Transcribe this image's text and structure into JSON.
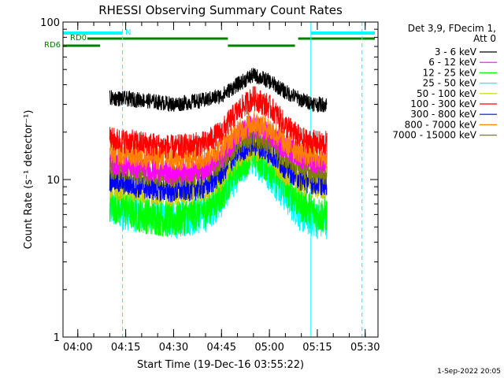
{
  "chart_data": {
    "type": "line",
    "title": "RHESSI Observing Summary Count Rates",
    "xlabel": "Start Time (19-Dec-16 03:55:22)",
    "ylabel": "Count Rate (s⁻¹ detector⁻¹)",
    "y_scale": "log",
    "xlim": [
      "03:55:22",
      "05:34:00"
    ],
    "ylim": [
      1,
      100
    ],
    "x_ticks": [
      "04:00",
      "04:15",
      "04:30",
      "04:45",
      "05:00",
      "05:15",
      "05:30"
    ],
    "y_ticks": [
      "1",
      "10",
      "100"
    ],
    "legend_placement": "right",
    "legend_header": [
      "Det 3,9, FDecim 1,",
      "Att 0"
    ],
    "data_start": "04:10",
    "data_end": "05:18",
    "series": [
      {
        "name": "3 - 6 keV",
        "color": "#000000",
        "x": [
          "04:10",
          "04:20",
          "04:30",
          "04:40",
          "04:45",
          "04:50",
          "04:55",
          "05:00",
          "05:05",
          "05:10",
          "05:15"
        ],
        "values": [
          33,
          32,
          30,
          32,
          34,
          40,
          46,
          42,
          36,
          32,
          30
        ]
      },
      {
        "name": "6 - 12 keV",
        "color": "#ff00ff",
        "x": [
          "04:10",
          "04:20",
          "04:30",
          "04:40",
          "04:45",
          "04:50",
          "04:55",
          "05:00",
          "05:05",
          "05:10",
          "05:15"
        ],
        "values": [
          13,
          12,
          11,
          12,
          14,
          19,
          22,
          19,
          16,
          14,
          13
        ]
      },
      {
        "name": "12 - 25 keV",
        "color": "#00ff00",
        "x": [
          "04:10",
          "04:20",
          "04:30",
          "04:40",
          "04:45",
          "04:50",
          "04:55",
          "05:00",
          "05:05",
          "05:10",
          "05:15"
        ],
        "values": [
          7,
          6,
          5.5,
          6.5,
          8,
          12,
          15,
          12,
          9,
          7,
          6
        ]
      },
      {
        "name": "25 - 50 keV",
        "color": "#00ffff",
        "x": [
          "04:10",
          "04:20",
          "04:30",
          "04:40",
          "04:45",
          "04:50",
          "04:55",
          "05:00",
          "05:05",
          "05:10",
          "05:15"
        ],
        "values": [
          6.5,
          6,
          5.5,
          6,
          7.5,
          11,
          14,
          11,
          8,
          6,
          5.5
        ]
      },
      {
        "name": "50 - 100 keV",
        "color": "#cccc00",
        "x": [
          "04:10",
          "04:20",
          "04:30",
          "04:40",
          "04:45",
          "04:50",
          "04:55",
          "05:00",
          "05:05",
          "05:10",
          "05:15"
        ],
        "values": [
          9,
          8.5,
          8,
          8.5,
          10,
          14,
          16,
          14,
          11,
          9.5,
          9
        ]
      },
      {
        "name": "100 - 300 keV",
        "color": "#ff0000",
        "x": [
          "04:10",
          "04:20",
          "04:30",
          "04:40",
          "04:45",
          "04:50",
          "04:55",
          "05:00",
          "05:05",
          "05:10",
          "05:15"
        ],
        "values": [
          18,
          17,
          16,
          17,
          20,
          27,
          33,
          29,
          22,
          18,
          17
        ]
      },
      {
        "name": "300 - 800 keV",
        "color": "#0000ff",
        "x": [
          "04:10",
          "04:20",
          "04:30",
          "04:40",
          "04:45",
          "04:50",
          "04:55",
          "05:00",
          "05:05",
          "05:10",
          "05:15"
        ],
        "values": [
          10,
          9,
          8.5,
          9,
          11,
          15,
          17,
          15,
          12,
          10,
          9.5
        ]
      },
      {
        "name": "800 - 7000 keV",
        "color": "#ff8000",
        "x": [
          "04:10",
          "04:20",
          "04:30",
          "04:40",
          "04:45",
          "04:50",
          "04:55",
          "05:00",
          "05:05",
          "05:10",
          "05:15"
        ],
        "values": [
          15,
          14,
          13.5,
          14,
          16,
          20,
          23,
          21,
          17,
          15,
          14
        ]
      },
      {
        "name": "7000 - 15000 keV",
        "color": "#808000",
        "x": [
          "04:10",
          "04:20",
          "04:30",
          "04:40",
          "04:45",
          "04:50",
          "04:55",
          "05:00",
          "05:05",
          "05:10",
          "05:15"
        ],
        "values": [
          12,
          11,
          10.5,
          11,
          13,
          17,
          19,
          17,
          14,
          12,
          11
        ]
      }
    ],
    "flags": {
      "N_label": "N",
      "RD0_label": "RD0",
      "RD6_label": "RD6",
      "N_color": "#00ffff",
      "RD0_color": "#008000",
      "RD6_color": "#008000"
    },
    "vertical_markers": [
      "04:14",
      "05:13",
      "05:29"
    ]
  },
  "footer": {
    "timestamp": "1-Sep-2022 20:05"
  }
}
